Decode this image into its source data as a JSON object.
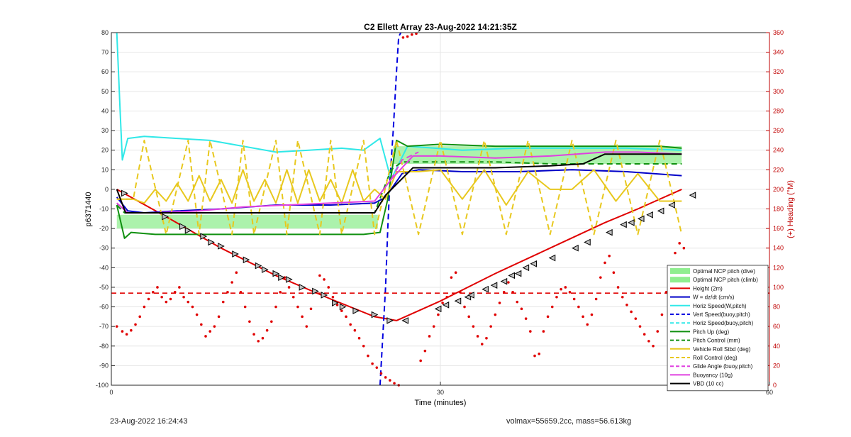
{
  "footer": {
    "timestamp": "23-Aug-2022 16:24:43",
    "info": "volmax=55659.2cc, mass=56.613kg"
  },
  "chart_data": {
    "type": "line",
    "title": "C2 Ellett Array 23-Aug-2022 14:21:35Z",
    "xlabel": "Time (minutes)",
    "ylabel": "p6371440",
    "y2label": "(+) Heading (°M)",
    "xlim": [
      0,
      60
    ],
    "ylim": [
      -100,
      80
    ],
    "y2lim": [
      0,
      360
    ],
    "xticks": [
      0,
      30,
      60
    ],
    "yticks": [
      -100,
      -90,
      -80,
      -70,
      -60,
      -50,
      -40,
      -30,
      -20,
      -10,
      0,
      10,
      20,
      30,
      40,
      50,
      60,
      70,
      80
    ],
    "y2ticks": [
      0,
      20,
      40,
      60,
      80,
      100,
      120,
      140,
      160,
      180,
      200,
      220,
      240,
      260,
      280,
      300,
      320,
      340,
      360
    ],
    "grid": true,
    "legend_position": "lower-right",
    "series": [
      {
        "name": "Optimal NCP pitch (dive)",
        "kind": "band",
        "color": "#90ee90",
        "x": [
          0.5,
          24.3
        ],
        "y_low": [
          -20,
          -20
        ],
        "y_high": [
          -13,
          -13
        ]
      },
      {
        "name": "Optimal NCP pitch (climb)",
        "kind": "band",
        "color": "#90ee90",
        "x": [
          25.7,
          52
        ],
        "y_low": [
          13,
          13
        ],
        "y_high": [
          22,
          22
        ]
      },
      {
        "name": "Height (2m)",
        "color": "#e00000",
        "style": "solid",
        "width": 2,
        "x": [
          0.5,
          5,
          10,
          15,
          20,
          24,
          26,
          30,
          35,
          40,
          45,
          48,
          52
        ],
        "y": [
          0,
          -14,
          -30,
          -44,
          -56,
          -65,
          -67,
          -57,
          -43,
          -30,
          -17,
          -10,
          0
        ]
      },
      {
        "name": "W = dz/dt (cm/s)",
        "color": "#0000c8",
        "style": "solid",
        "width": 2,
        "x": [
          0.5,
          1.5,
          3,
          6,
          10,
          15,
          20,
          24,
          25,
          26.5,
          28,
          32,
          37,
          42,
          47,
          52
        ],
        "y": [
          -4,
          -11,
          -12,
          -11,
          -10,
          -8,
          -8,
          -7,
          -4,
          8,
          10,
          9,
          9,
          10,
          9,
          7
        ]
      },
      {
        "name": "Horiz Speed(W,pitch)",
        "color": "#30e8e8",
        "style": "solid",
        "width": 2,
        "x": [
          0.5,
          0.8,
          1.0,
          1.5,
          3,
          6,
          9,
          12,
          15,
          18,
          21,
          23,
          24.5,
          25.5,
          27,
          32,
          37,
          42,
          47,
          52
        ],
        "y": [
          80,
          40,
          15,
          26,
          27,
          26,
          25,
          22,
          19,
          20,
          21,
          20,
          26,
          5,
          22,
          20,
          21,
          21,
          21,
          20
        ]
      },
      {
        "name": "Vert Speed(buoy,pitch)",
        "color": "#0000e0",
        "style": "dashed",
        "width": 2,
        "x": [
          24.5,
          24.7,
          25,
          25.2,
          25.4,
          25.7,
          26.0,
          26.2,
          26.4
        ],
        "y": [
          -100,
          -80,
          -50,
          -20,
          5,
          30,
          60,
          78,
          80
        ]
      },
      {
        "name": "Horiz Speed(buoy,pitch)",
        "color": "#30e8e8",
        "style": "dashed",
        "width": 2,
        "x": [],
        "y": []
      },
      {
        "name": "Pitch Up (deg)",
        "color": "#109010",
        "style": "solid",
        "width": 2,
        "x": [
          0.5,
          1.2,
          1.8,
          4,
          8,
          12,
          16,
          20,
          23,
          24.5,
          25.2,
          25.6,
          26,
          27,
          30,
          35,
          40,
          45,
          50,
          52
        ],
        "y": [
          -8,
          -25,
          -22,
          -23,
          -23,
          -23,
          -23,
          -23,
          -23,
          -22,
          -5,
          10,
          25,
          22,
          23,
          22,
          22,
          22,
          22,
          21
        ]
      },
      {
        "name": "Pitch Control (mm)",
        "color": "#109010",
        "style": "dashed",
        "width": 2,
        "x": [
          0.5,
          1.2,
          4,
          10,
          16,
          22,
          24,
          25.5,
          26.5,
          30,
          35,
          40,
          45,
          52
        ],
        "y": [
          -8,
          -12,
          -12,
          -12,
          -12,
          -12,
          -12,
          10,
          14,
          14,
          14,
          13,
          13,
          13
        ]
      },
      {
        "name": "Vehicle Roll Stbd (deg)",
        "color": "#e8c81e",
        "style": "solid",
        "width": 2,
        "x": [
          0.5,
          2,
          3,
          4,
          5,
          6,
          7,
          8,
          9,
          10,
          11,
          12,
          13,
          14,
          15,
          16,
          17,
          18,
          19,
          20,
          21,
          22,
          23,
          24,
          25,
          26,
          28,
          30,
          32,
          34,
          36,
          38,
          40,
          42,
          44,
          46,
          48,
          50,
          52
        ],
        "y": [
          -5,
          -5,
          -7,
          0,
          -6,
          3,
          -6,
          7,
          -6,
          5,
          -7,
          10,
          -6,
          5,
          -7,
          10,
          -7,
          10,
          -6,
          5,
          -7,
          10,
          -6,
          0,
          -5,
          9,
          9,
          10,
          -5,
          10,
          -8,
          9,
          0,
          0,
          10,
          -6,
          8,
          -6,
          -6
        ]
      },
      {
        "name": "Roll Control (deg)",
        "color": "#e8c81e",
        "style": "dashed",
        "width": 2,
        "x": [
          0.5,
          2,
          3,
          5,
          7,
          8,
          9,
          11,
          12,
          13,
          15,
          16,
          17,
          19,
          20,
          21,
          23,
          24,
          26,
          28,
          30,
          32,
          34,
          36,
          38,
          40,
          42,
          44,
          46,
          48,
          50,
          52
        ],
        "y": [
          -5,
          -5,
          25,
          -23,
          25,
          -23,
          25,
          -23,
          25,
          -23,
          25,
          -23,
          25,
          -23,
          25,
          -23,
          25,
          -23,
          25,
          -23,
          25,
          -23,
          25,
          -23,
          25,
          -23,
          25,
          -23,
          25,
          -23,
          25,
          -23
        ]
      },
      {
        "name": "Glide Angle (buoy,pitch)",
        "color": "#e040e0",
        "style": "dashed",
        "width": 2,
        "x": [
          25.5,
          26.5,
          28
        ],
        "y": [
          5,
          15,
          19
        ]
      },
      {
        "name": "Buoyancy (10g)",
        "color": "#e040e0",
        "style": "solid",
        "width": 2,
        "x": [
          0.5,
          1.5,
          4,
          8,
          12,
          16,
          20,
          24,
          25.5,
          27.5,
          30,
          35,
          40,
          45,
          48,
          52
        ],
        "y": [
          -7,
          -12,
          -12,
          -11,
          -9,
          -8,
          -7,
          -6,
          5,
          17,
          17,
          16,
          17,
          19,
          19,
          18
        ]
      },
      {
        "name": "VBD (10 cc)",
        "color": "#000000",
        "style": "solid",
        "width": 2,
        "x": [
          0.5,
          1.3,
          4,
          8,
          12,
          16,
          20,
          24,
          25,
          27.5,
          30,
          35,
          40,
          43,
          45,
          52
        ],
        "y": [
          0,
          -12,
          -12,
          -12,
          -12,
          -12,
          -12,
          -12,
          -3,
          11,
          11,
          11,
          12,
          13,
          18,
          18
        ]
      },
      {
        "name": "Heading",
        "kind": "scatter",
        "axis": "right",
        "color": "#e00000",
        "x": [
          0.5,
          1.0,
          1.4,
          1.8,
          2.2,
          2.6,
          3.0,
          3.4,
          3.8,
          4.2,
          4.6,
          5.0,
          5.4,
          5.8,
          6.2,
          6.6,
          7.0,
          7.4,
          7.8,
          8.2,
          8.6,
          9.0,
          9.4,
          9.8,
          10.2,
          10.6,
          11.0,
          11.4,
          11.8,
          12.2,
          12.6,
          13.0,
          13.4,
          13.8,
          14.2,
          14.6,
          15.0,
          15.4,
          15.8,
          16.2,
          16.6,
          17.0,
          17.4,
          17.8,
          18.2,
          18.6,
          19.0,
          19.4,
          19.8,
          20.2,
          20.6,
          21.0,
          21.4,
          21.8,
          22.2,
          22.6,
          23.0,
          23.4,
          23.8,
          24.2,
          24.6,
          25.0,
          25.4,
          25.8,
          26.2,
          26.6,
          27.0,
          27.4,
          27.8,
          28.2,
          28.6,
          29.0,
          29.4,
          29.8,
          30.2,
          30.6,
          31.0,
          31.4,
          31.8,
          32.2,
          32.6,
          33.0,
          33.4,
          33.8,
          34.2,
          34.6,
          35.0,
          35.4,
          35.8,
          36.2,
          36.6,
          37.0,
          37.4,
          37.8,
          38.2,
          38.6,
          39.0,
          39.4,
          39.8,
          40.2,
          40.6,
          41.0,
          41.4,
          41.8,
          42.2,
          42.6,
          43.0,
          43.4,
          43.8,
          44.2,
          44.6,
          45.0,
          45.4,
          45.8,
          46.2,
          46.6,
          47.0,
          47.4,
          47.8,
          48.2,
          48.6,
          49.0,
          49.4,
          49.8,
          50.2,
          50.6,
          51.0,
          51.4,
          51.8,
          52.2
        ],
        "y": [
          60,
          55,
          52,
          56,
          62,
          70,
          80,
          88,
          95,
          100,
          90,
          85,
          88,
          95,
          100,
          90,
          85,
          80,
          72,
          62,
          50,
          55,
          60,
          70,
          85,
          95,
          105,
          115,
          95,
          80,
          65,
          52,
          45,
          48,
          56,
          65,
          80,
          95,
          110,
          100,
          90,
          80,
          70,
          60,
          78,
          95,
          112,
          108,
          100,
          90,
          82,
          76,
          70,
          62,
          56,
          48,
          40,
          30,
          22,
          18,
          12,
          8,
          5,
          2,
          0,
          355,
          356,
          358,
          359,
          25,
          35,
          50,
          60,
          72,
          84,
          90,
          110,
          115,
          95,
          80,
          70,
          60,
          50,
          42,
          48,
          60,
          72,
          84,
          95,
          105,
          95,
          85,
          78,
          68,
          55,
          30,
          32,
          55,
          70,
          80,
          90,
          98,
          100,
          95,
          88,
          80,
          70,
          62,
          72,
          88,
          110,
          125,
          132,
          115,
          100,
          90,
          82,
          75,
          68,
          60,
          52,
          45,
          40,
          55,
          72,
          95,
          120,
          135,
          145,
          140
        ]
      },
      {
        "name": "Heading mean",
        "kind": "hline",
        "axis": "left",
        "color": "#e00000",
        "style": "dashed",
        "y": -53
      }
    ],
    "height_markers": {
      "x": [
        1.2,
        4.9,
        6.5,
        7.0,
        8.4,
        9.1,
        10.0,
        11.3,
        12.3,
        13.4,
        14.0,
        15.0,
        15.5,
        16.2,
        17.4,
        18.6,
        19.4,
        20.4,
        21.1,
        22.3,
        24.0,
        25.4,
        26.8,
        29.8,
        30.5,
        31.6,
        32.5,
        32.8,
        34.1,
        34.9,
        35.8,
        36.5,
        37.1,
        37.8,
        38.5,
        40.2,
        42.3,
        43.4,
        45.4,
        46.7,
        47.4,
        48.3,
        49.1,
        50.1,
        51.1,
        53.0
      ],
      "y": [
        -2,
        -14,
        -19,
        -21,
        -24,
        -27,
        -29,
        -33,
        -36,
        -39,
        -41,
        -43,
        -45,
        -46,
        -50,
        -52,
        -54,
        -58,
        -60,
        -62,
        -64,
        -67,
        -67,
        -61,
        -59,
        -57,
        -55,
        -54,
        -51,
        -49,
        -47,
        -44,
        -43,
        -40,
        -38,
        -35,
        -30,
        -27,
        -22,
        -18,
        -17,
        -15,
        -13,
        -11,
        -8,
        -3
      ]
    }
  }
}
